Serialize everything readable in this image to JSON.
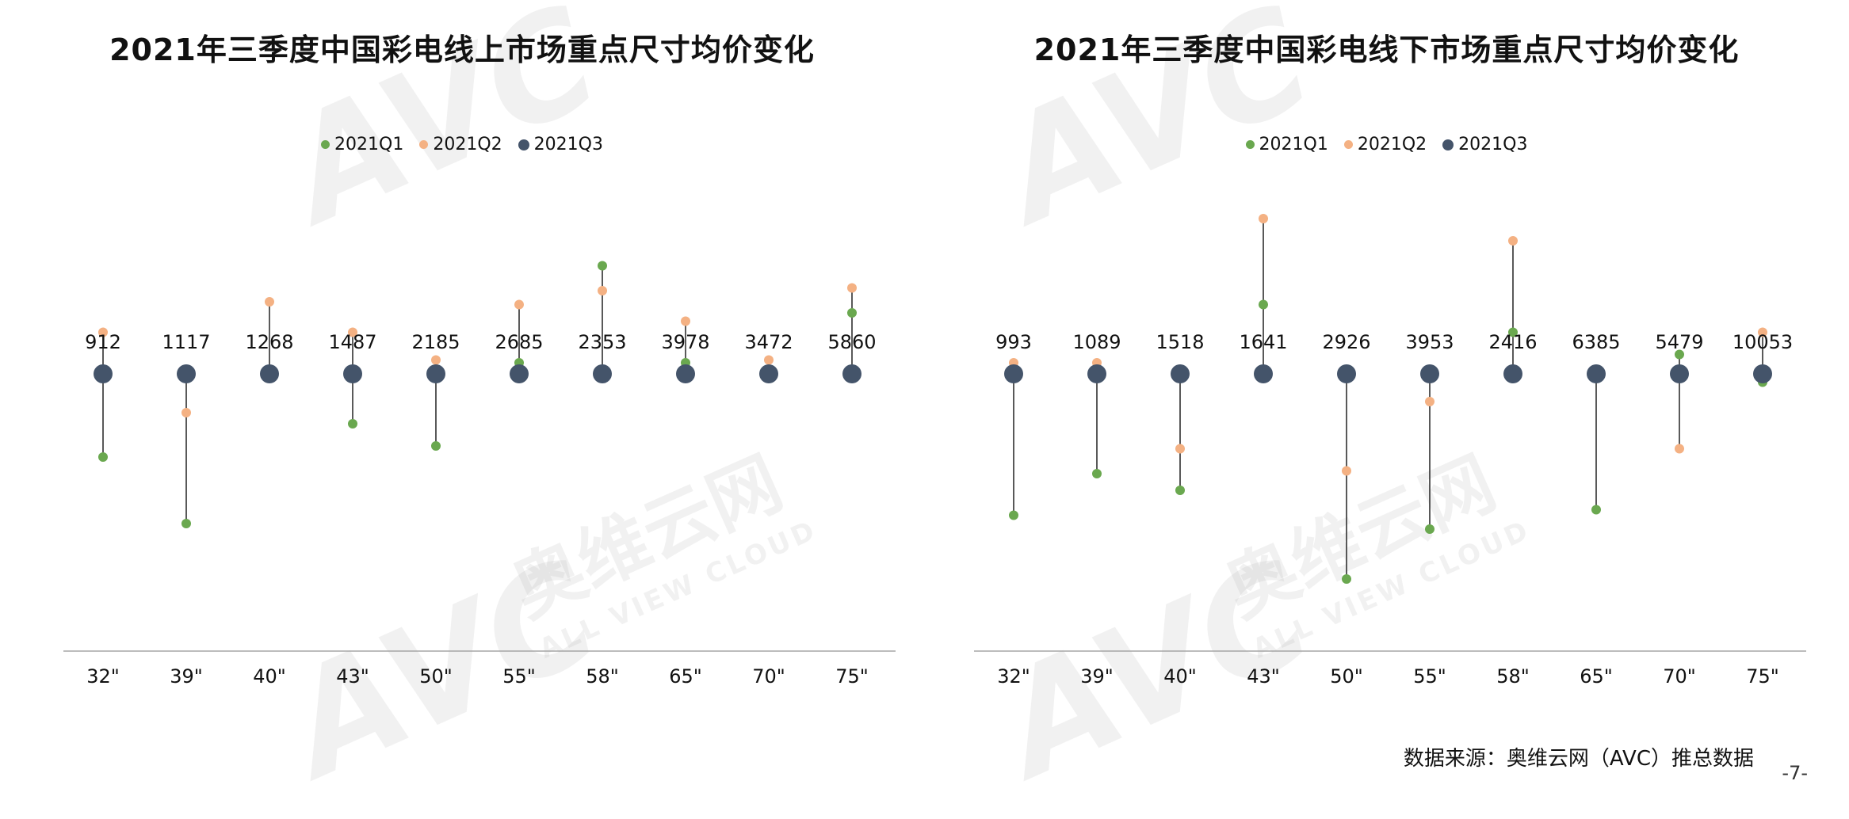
{
  "colors": {
    "q1": "#6aa84f",
    "q2": "#f4b183",
    "q3": "#44546a",
    "axis": "#a6a6a6"
  },
  "legend": [
    "2021Q1",
    "2021Q2",
    "2021Q3"
  ],
  "source_text": "数据来源：奥维云网（AVC）推总数据",
  "page_number": "-7-",
  "watermark": {
    "brand": "AVC",
    "cn": "奥维云网",
    "en": "ALL VIEW CLOUD"
  },
  "chart_data": [
    {
      "type": "scatter",
      "title": "2021年三季度中国彩电线上市场重点尺寸均价变化",
      "categories": [
        "32\"",
        "39\"",
        "40\"",
        "43\"",
        "50\"",
        "55\"",
        "58\"",
        "65\"",
        "70\"",
        "75\""
      ],
      "data_labels": [
        "912",
        "1117",
        "1268",
        "1487",
        "2185",
        "2685",
        "2353",
        "3978",
        "3472",
        "5860"
      ],
      "series": [
        {
          "name": "2021Q1",
          "values": [
            -0.3,
            -0.54,
            0.0,
            -0.18,
            -0.26,
            0.04,
            0.39,
            0.04,
            0.0,
            0.22
          ]
        },
        {
          "name": "2021Q2",
          "values": [
            0.15,
            -0.14,
            0.26,
            0.15,
            0.05,
            0.25,
            0.3,
            0.19,
            0.05,
            0.31
          ]
        },
        {
          "name": "2021Q3",
          "values": [
            0,
            0,
            0,
            0,
            0,
            0,
            0,
            0,
            0,
            0
          ]
        }
      ]
    },
    {
      "type": "scatter",
      "title": "2021年三季度中国彩电线下市场重点尺寸均价变化",
      "categories": [
        "32\"",
        "39\"",
        "40\"",
        "43\"",
        "50\"",
        "55\"",
        "58\"",
        "65\"",
        "70\"",
        "75\""
      ],
      "data_labels": [
        "993",
        "1089",
        "1518",
        "1641",
        "2926",
        "3953",
        "2416",
        "6385",
        "5479",
        "10053"
      ],
      "series": [
        {
          "name": "2021Q1",
          "values": [
            -0.51,
            -0.36,
            -0.42,
            0.25,
            -0.74,
            -0.56,
            0.15,
            -0.49,
            0.07,
            -0.03
          ]
        },
        {
          "name": "2021Q2",
          "values": [
            0.04,
            0.04,
            -0.27,
            0.56,
            -0.35,
            -0.1,
            0.48,
            0.0,
            -0.27,
            0.15
          ]
        },
        {
          "name": "2021Q3",
          "values": [
            0,
            0,
            0,
            0,
            0,
            0,
            0,
            0,
            0,
            0
          ]
        }
      ]
    }
  ]
}
